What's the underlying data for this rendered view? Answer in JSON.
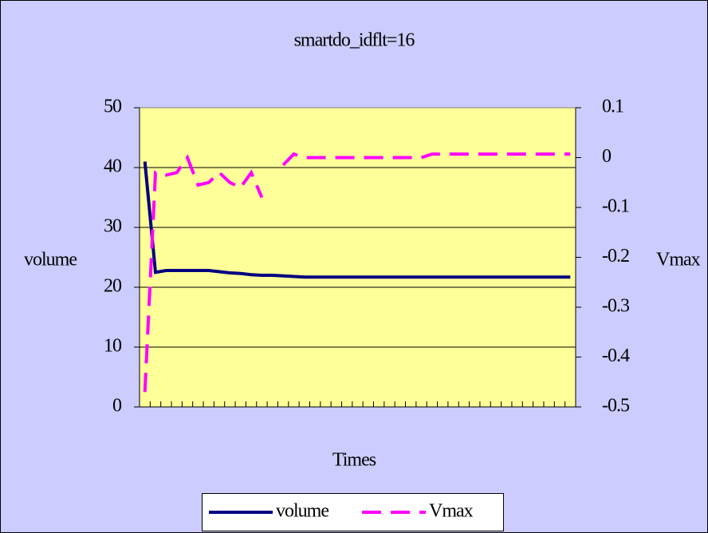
{
  "chart_data": {
    "type": "line",
    "title": "smartdo_idflt=16",
    "x_label": "Times",
    "y_label": "volume",
    "y2_label": "Vmax",
    "categories": [
      null,
      null,
      null,
      null,
      null,
      null,
      null,
      null,
      null,
      null,
      null,
      null,
      null,
      null,
      null,
      null,
      null,
      null,
      null,
      null,
      null,
      null,
      null,
      null,
      null,
      null,
      null,
      null,
      null,
      null,
      null,
      null,
      null,
      null,
      null,
      null,
      null,
      null,
      null,
      null,
      null
    ],
    "series": [
      {
        "name": "volume",
        "color": "#000080",
        "values": [
          41,
          22.5,
          22.8,
          22.8,
          22.8,
          22.8,
          22.8,
          22.6,
          22.4,
          22.3,
          22.1,
          22,
          22,
          21.9,
          21.8,
          21.7,
          21.7,
          21.7,
          21.7,
          21.7,
          21.7,
          21.7,
          21.7,
          21.7,
          21.7,
          21.7,
          21.7,
          21.7,
          21.7,
          21.7,
          21.7,
          21.7,
          21.7,
          21.7,
          21.7,
          21.7,
          21.7,
          21.7,
          21.7,
          21.7,
          21.7
        ]
      },
      {
        "name": "Vmax",
        "color": "#ff00ff",
        "axis": "y2",
        "dashed": true,
        "values": [
          -0.47,
          -0.03,
          -0.035,
          -0.03,
          0,
          -0.055,
          -0.05,
          -0.03,
          -0.05,
          -0.06,
          -0.03,
          -0.08,
          null,
          -0.015,
          0.007,
          0,
          0,
          0,
          0,
          0,
          0,
          0,
          0,
          0,
          0,
          0,
          0,
          0.007,
          0.007,
          0.007,
          0.007,
          0.007,
          0.007,
          0.007,
          0.007,
          0.007,
          0.007,
          0.007,
          0.007,
          0.007,
          0.007
        ]
      }
    ],
    "ylim": [
      0,
      50
    ],
    "yticks": [
      0,
      10,
      20,
      30,
      40,
      50
    ],
    "y2lim": [
      -0.5,
      0.1
    ],
    "y2ticks": [
      0.1,
      0,
      -0.1,
      -0.2,
      -0.3,
      -0.4,
      -0.5
    ],
    "grid": true,
    "legend": "bottom"
  }
}
